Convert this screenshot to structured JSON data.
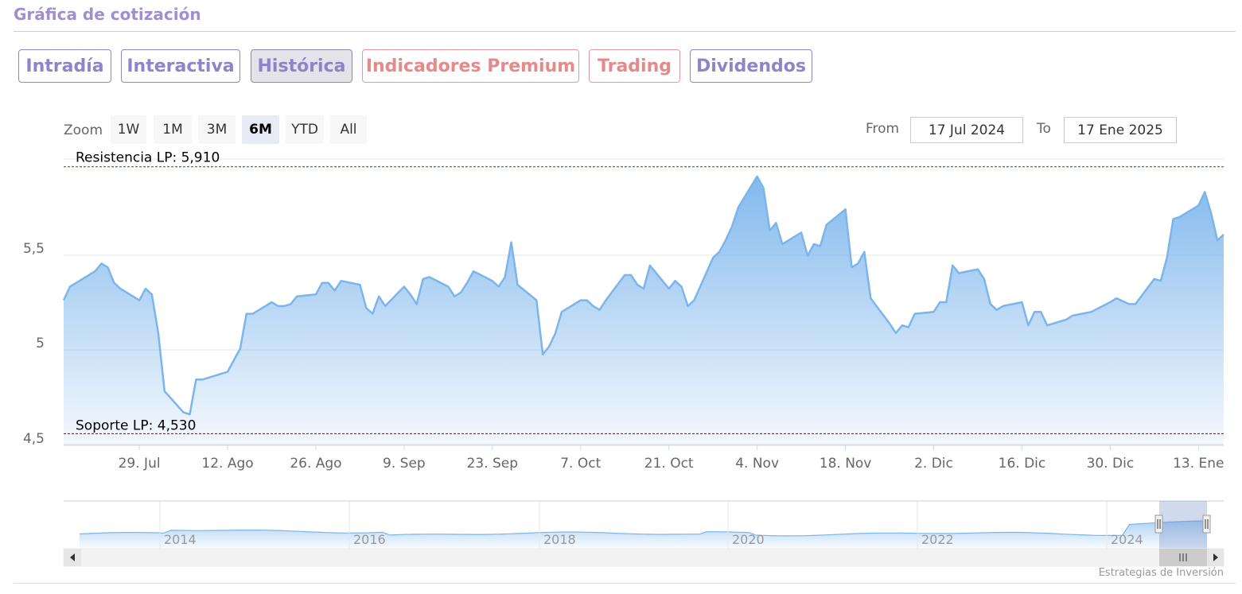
{
  "header": {
    "title": "Gráfica de cotización"
  },
  "tabs": [
    {
      "label": "Intradía",
      "active": false,
      "premium": false
    },
    {
      "label": "Interactiva",
      "active": false,
      "premium": false
    },
    {
      "label": "Histórica",
      "active": true,
      "premium": false
    },
    {
      "label": "Indicadores Premium",
      "active": false,
      "premium": true
    },
    {
      "label": "Trading",
      "active": false,
      "premium": true
    },
    {
      "label": "Dividendos",
      "active": false,
      "premium": false
    }
  ],
  "range_selector": {
    "zoom_label": "Zoom",
    "buttons": [
      "1W",
      "1M",
      "3M",
      "6M",
      "YTD",
      "All"
    ],
    "selected": "6M",
    "from_label": "From",
    "from_value": "17 Jul 2024",
    "to_label": "To",
    "to_value": "17 Ene 2025"
  },
  "colors": {
    "series": "#7cb5ec",
    "resistance": "#0a6b0a",
    "support": "#8b0000",
    "accent": "#9f8fd0"
  },
  "chart_data": {
    "type": "area",
    "x_tick_labels": [
      "29. Jul",
      "12. Ago",
      "26. Ago",
      "9. Sep",
      "23. Sep",
      "7. Oct",
      "21. Oct",
      "4. Nov",
      "18. Nov",
      "2. Dic",
      "16. Dic",
      "30. Dic",
      "13. Ene"
    ],
    "y_tick_labels": [
      "4,5",
      "5",
      "5,5"
    ],
    "ylim": [
      4.47,
      5.95
    ],
    "x_range": [
      "2024-07-17",
      "2025-01-17"
    ],
    "reference_lines": [
      {
        "label": "Resistencia LP: 5,910",
        "value": 5.91
      },
      {
        "label": "Soporte LP: 4,530",
        "value": 4.53
      }
    ],
    "series": [
      {
        "x": [
          "2024-07-17",
          "2024-07-18",
          "2024-07-19",
          "2024-07-22",
          "2024-07-23",
          "2024-07-24",
          "2024-07-25",
          "2024-07-26",
          "2024-07-29",
          "2024-07-30",
          "2024-07-31",
          "2024-08-01",
          "2024-08-02",
          "2024-08-05",
          "2024-08-06",
          "2024-08-07",
          "2024-08-08",
          "2024-08-09",
          "2024-08-12",
          "2024-08-13",
          "2024-08-14",
          "2024-08-15",
          "2024-08-16",
          "2024-08-19",
          "2024-08-20",
          "2024-08-21",
          "2024-08-22",
          "2024-08-23",
          "2024-08-26",
          "2024-08-27",
          "2024-08-28",
          "2024-08-29",
          "2024-08-30",
          "2024-09-02",
          "2024-09-03",
          "2024-09-04",
          "2024-09-05",
          "2024-09-06",
          "2024-09-09",
          "2024-09-10",
          "2024-09-11",
          "2024-09-12",
          "2024-09-13",
          "2024-09-16",
          "2024-09-17",
          "2024-09-18",
          "2024-09-19",
          "2024-09-20",
          "2024-09-23",
          "2024-09-24",
          "2024-09-25",
          "2024-09-26",
          "2024-09-27",
          "2024-09-30",
          "2024-10-01",
          "2024-10-02",
          "2024-10-03",
          "2024-10-04",
          "2024-10-07",
          "2024-10-08",
          "2024-10-09",
          "2024-10-10",
          "2024-10-11",
          "2024-10-14",
          "2024-10-15",
          "2024-10-16",
          "2024-10-17",
          "2024-10-18",
          "2024-10-21",
          "2024-10-22",
          "2024-10-23",
          "2024-10-24",
          "2024-10-25",
          "2024-10-28",
          "2024-10-29",
          "2024-10-30",
          "2024-10-31",
          "2024-11-01",
          "2024-11-04",
          "2024-11-05",
          "2024-11-06",
          "2024-11-07",
          "2024-11-08",
          "2024-11-11",
          "2024-11-12",
          "2024-11-13",
          "2024-11-14",
          "2024-11-15",
          "2024-11-18",
          "2024-11-19",
          "2024-11-20",
          "2024-11-21",
          "2024-11-22",
          "2024-11-25",
          "2024-11-26",
          "2024-11-27",
          "2024-11-28",
          "2024-11-29",
          "2024-12-02",
          "2024-12-03",
          "2024-12-04",
          "2024-12-05",
          "2024-12-06",
          "2024-12-09",
          "2024-12-10",
          "2024-12-11",
          "2024-12-12",
          "2024-12-13",
          "2024-12-16",
          "2024-12-17",
          "2024-12-18",
          "2024-12-19",
          "2024-12-20",
          "2024-12-23",
          "2024-12-24",
          "2024-12-27",
          "2024-12-30",
          "2024-12-31",
          "2025-01-02",
          "2025-01-03",
          "2025-01-06",
          "2025-01-07",
          "2025-01-08",
          "2025-01-09",
          "2025-01-10",
          "2025-01-13",
          "2025-01-14",
          "2025-01-15",
          "2025-01-16",
          "2025-01-17"
        ],
        "y": [
          5.22,
          5.29,
          5.31,
          5.37,
          5.41,
          5.39,
          5.31,
          5.28,
          5.22,
          5.28,
          5.25,
          5.05,
          4.75,
          4.64,
          4.63,
          4.81,
          4.81,
          4.82,
          4.85,
          4.91,
          4.97,
          5.15,
          5.15,
          5.21,
          5.19,
          5.19,
          5.2,
          5.24,
          5.25,
          5.31,
          5.31,
          5.27,
          5.32,
          5.3,
          5.18,
          5.15,
          5.24,
          5.19,
          5.29,
          5.25,
          5.2,
          5.33,
          5.34,
          5.29,
          5.24,
          5.26,
          5.31,
          5.37,
          5.32,
          5.29,
          5.34,
          5.52,
          5.3,
          5.22,
          4.94,
          4.98,
          5.05,
          5.16,
          5.22,
          5.22,
          5.19,
          5.17,
          5.22,
          5.35,
          5.35,
          5.3,
          5.28,
          5.4,
          5.28,
          5.32,
          5.29,
          5.19,
          5.22,
          5.44,
          5.47,
          5.53,
          5.6,
          5.7,
          5.86,
          5.8,
          5.58,
          5.62,
          5.51,
          5.57,
          5.45,
          5.51,
          5.5,
          5.61,
          5.69,
          5.39,
          5.41,
          5.47,
          5.23,
          5.1,
          5.05,
          5.09,
          5.08,
          5.15,
          5.16,
          5.21,
          5.21,
          5.4,
          5.36,
          5.38,
          5.33,
          5.2,
          5.17,
          5.19,
          5.21,
          5.09,
          5.16,
          5.16,
          5.09,
          5.12,
          5.14,
          5.16,
          5.21,
          5.23,
          5.2,
          5.2,
          5.33,
          5.32,
          5.44,
          5.64,
          5.65,
          5.71,
          5.78,
          5.67,
          5.53,
          5.56
        ]
      }
    ],
    "navigator": {
      "x_tick_labels": [
        "2014",
        "2016",
        "2018",
        "2020",
        "2022",
        "2024"
      ]
    },
    "credit": "Estrategias de Inversión"
  }
}
